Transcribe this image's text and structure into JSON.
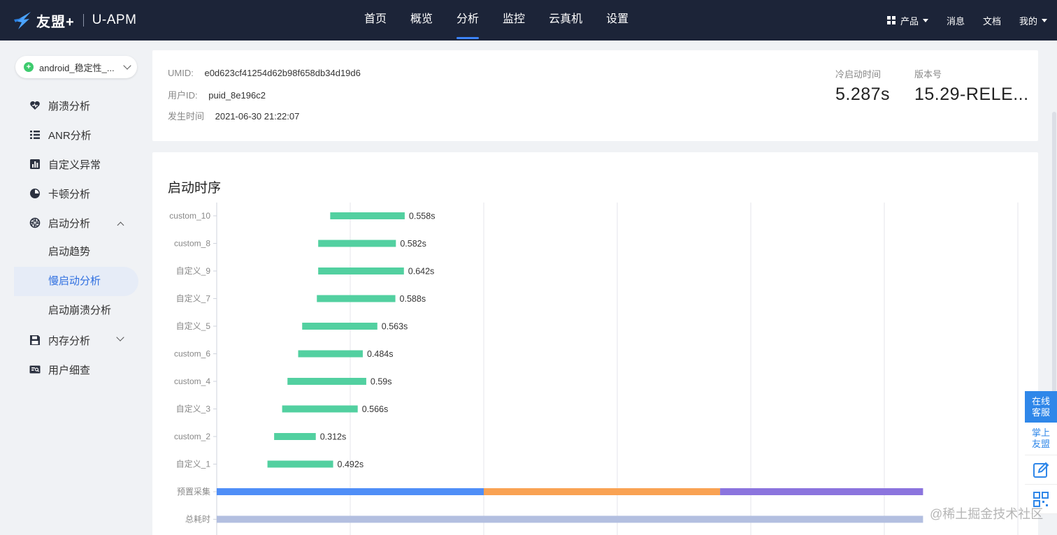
{
  "header": {
    "brand": "友盟+",
    "product": "U-APM",
    "nav": [
      "首页",
      "概览",
      "分析",
      "监控",
      "云真机",
      "设置"
    ],
    "active_nav_index": 2,
    "right": {
      "products": "产品",
      "messages": "消息",
      "docs": "文档",
      "mine": "我的"
    }
  },
  "sidebar": {
    "app_selector": "android_稳定性_...",
    "items": [
      {
        "label": "崩溃分析",
        "icon": "heart-shield-icon"
      },
      {
        "label": "ANR分析",
        "icon": "list-icon"
      },
      {
        "label": "自定义异常",
        "icon": "bar-chart-icon"
      },
      {
        "label": "卡顿分析",
        "icon": "clock-pie-icon"
      },
      {
        "label": "启动分析",
        "icon": "aperture-icon",
        "expanded": true
      },
      {
        "label": "内存分析",
        "icon": "floppy-icon",
        "expanded": false
      },
      {
        "label": "用户细查",
        "icon": "id-card-icon"
      }
    ],
    "launch_submenu": [
      "启动趋势",
      "慢启动分析",
      "启动崩溃分析"
    ],
    "active_submenu_index": 1
  },
  "info": {
    "umid_label": "UMID:",
    "umid": "e0d623cf41254d62b98f658db34d19d6",
    "user_label": "用户ID:",
    "user_id": "puid_8e196c2",
    "time_label": "发生时间",
    "time": "2021-06-30 21:22:07",
    "cold_start_label": "冷启动时间",
    "cold_start": "5.287s",
    "version_label": "版本号",
    "version": "15.29-RELE..."
  },
  "chart_title": "启动时序",
  "chart_data": {
    "type": "bar",
    "orientation": "horizontal-gantt",
    "categories": [
      "custom_10",
      "custom_8",
      "自定义_9",
      "自定义_7",
      "自定义_5",
      "custom_6",
      "custom_4",
      "自定义_3",
      "custom_2",
      "自定义_1",
      "预置采集",
      "总耗时"
    ],
    "tasks": [
      {
        "name": "custom_10",
        "start": 0.85,
        "duration": 0.558,
        "label": "0.558s"
      },
      {
        "name": "custom_8",
        "start": 0.76,
        "duration": 0.582,
        "label": "0.582s"
      },
      {
        "name": "自定义_9",
        "start": 0.76,
        "duration": 0.642,
        "label": "0.642s"
      },
      {
        "name": "自定义_7",
        "start": 0.75,
        "duration": 0.588,
        "label": "0.588s"
      },
      {
        "name": "自定义_5",
        "start": 0.64,
        "duration": 0.563,
        "label": "0.563s"
      },
      {
        "name": "custom_6",
        "start": 0.61,
        "duration": 0.484,
        "label": "0.484s"
      },
      {
        "name": "custom_4",
        "start": 0.53,
        "duration": 0.59,
        "label": "0.59s"
      },
      {
        "name": "自定义_3",
        "start": 0.49,
        "duration": 0.566,
        "label": "0.566s"
      },
      {
        "name": "custom_2",
        "start": 0.43,
        "duration": 0.312,
        "label": "0.312s"
      },
      {
        "name": "自定义_1",
        "start": 0.38,
        "duration": 0.492,
        "label": "0.492s"
      }
    ],
    "preset_segments": [
      {
        "start": 0,
        "end": 2.0,
        "color": "#4f8ef7"
      },
      {
        "start": 2.0,
        "end": 3.77,
        "color": "#f9a253"
      },
      {
        "start": 3.77,
        "end": 5.29,
        "color": "#8b74de"
      }
    ],
    "total": {
      "start": 0,
      "end": 5.29,
      "color": "#b3bfe0"
    },
    "task_color": "#52d0a0",
    "xlim": [
      0,
      6
    ],
    "gridlines": [
      1,
      2,
      3,
      4,
      5,
      6
    ],
    "grid": true
  },
  "float_panel": {
    "online": [
      "在线",
      "客服"
    ],
    "mobile": [
      "掌上",
      "友盟"
    ]
  },
  "watermark": "@稀土掘金技术社区"
}
